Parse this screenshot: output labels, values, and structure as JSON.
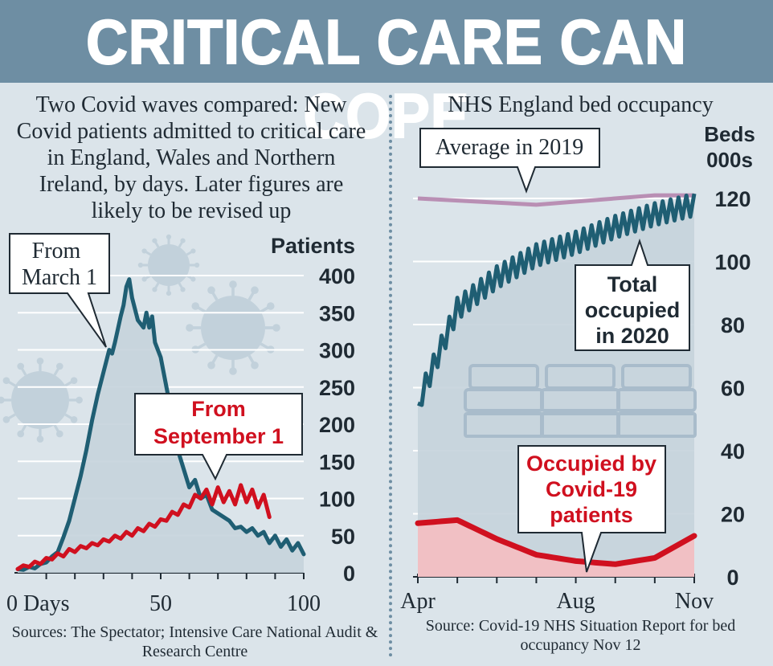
{
  "headline": "CRITICAL CARE CAN COPE",
  "left_panel": {
    "subtitle": "Two Covid waves compared: New Covid patients admitted to critical care in England, Wales and Northern Ireland, by days. Later figures are likely to be revised up",
    "source": "Sources: The Spectator; Intensive Care National Audit & Research Centre"
  },
  "right_panel": {
    "subtitle": "NHS England bed occupancy",
    "source": "Source: Covid-19 NHS Situation Report for bed occupancy Nov 12"
  },
  "colors": {
    "banner": "#6e8ea3",
    "background": "#dbe4ea",
    "teal_line": "#1f5e73",
    "red_line": "#d0101f",
    "lilac_line": "#b98fb4",
    "area_fill": "#c5d3dc",
    "pink_fill": "#f1c0c4"
  },
  "icons": [
    "virus-icon",
    "virus-icon",
    "virus-icon",
    "bed-icon",
    "bed-icon",
    "bed-icon"
  ],
  "chart_data": [
    {
      "type": "line",
      "xlabel": "Days",
      "ylabel": "Patients",
      "xlim": [
        0,
        100
      ],
      "ylim": [
        0,
        400
      ],
      "x_ticks": [
        0,
        50,
        100
      ],
      "x_tick_labels": [
        "0 Days",
        "50",
        "100"
      ],
      "y_ticks": [
        0,
        50,
        100,
        150,
        200,
        250,
        300,
        350,
        400
      ],
      "grid": true,
      "series": [
        {
          "name": "From March 1",
          "label_lines": [
            "From",
            "March 1"
          ],
          "color": "#1f5e73",
          "x": [
            0,
            2,
            4,
            6,
            8,
            10,
            12,
            14,
            16,
            18,
            20,
            22,
            24,
            26,
            28,
            30,
            31,
            32,
            33,
            34,
            36,
            37,
            38,
            39,
            40,
            42,
            44,
            45,
            46,
            47,
            48,
            50,
            52,
            54,
            56,
            58,
            60,
            62,
            64,
            66,
            68,
            70,
            72,
            74,
            76,
            78,
            80,
            82,
            84,
            86,
            88,
            90,
            92,
            94,
            96,
            98,
            100
          ],
          "values": [
            5,
            4,
            8,
            6,
            12,
            14,
            22,
            28,
            48,
            70,
            100,
            130,
            165,
            205,
            240,
            270,
            285,
            300,
            295,
            310,
            345,
            360,
            385,
            395,
            370,
            340,
            330,
            350,
            330,
            345,
            310,
            290,
            250,
            210,
            165,
            140,
            115,
            125,
            100,
            105,
            85,
            80,
            75,
            70,
            60,
            62,
            55,
            60,
            50,
            55,
            40,
            50,
            35,
            45,
            30,
            40,
            25
          ]
        },
        {
          "name": "From September 1",
          "label_lines": [
            "From",
            "September 1"
          ],
          "color": "#d0101f",
          "x": [
            0,
            2,
            4,
            6,
            8,
            10,
            12,
            14,
            16,
            18,
            20,
            22,
            24,
            26,
            28,
            30,
            32,
            34,
            36,
            38,
            40,
            42,
            44,
            46,
            48,
            50,
            52,
            54,
            56,
            58,
            60,
            62,
            64,
            66,
            68,
            70,
            72,
            74,
            76,
            78,
            80,
            82,
            84,
            86,
            88
          ],
          "values": [
            5,
            10,
            8,
            15,
            12,
            20,
            18,
            26,
            22,
            32,
            28,
            36,
            33,
            40,
            37,
            45,
            42,
            50,
            46,
            55,
            50,
            60,
            56,
            66,
            62,
            72,
            70,
            82,
            78,
            92,
            88,
            105,
            100,
            112,
            92,
            115,
            95,
            110,
            92,
            118,
            95,
            112,
            88,
            105,
            75
          ]
        }
      ]
    },
    {
      "type": "line",
      "ylabel": "Beds 000s",
      "ylabel_lines": [
        "Beds",
        "000s"
      ],
      "xlim": [
        "Apr",
        "Nov"
      ],
      "ylim": [
        0,
        120
      ],
      "x_tick_labels": [
        "Apr",
        "Aug",
        "Nov"
      ],
      "y_ticks": [
        0,
        20,
        40,
        60,
        80,
        100,
        120
      ],
      "grid": true,
      "series": [
        {
          "name": "Average in 2019",
          "color": "#b98fb4",
          "x": [
            "Apr",
            "Jul",
            "Oct",
            "Nov"
          ],
          "values": [
            120,
            118,
            121,
            121
          ]
        },
        {
          "name": "Total occupied in 2020",
          "label_lines": [
            "Total",
            "occupied",
            "in 2020"
          ],
          "color": "#1f5e73",
          "x": [
            "Apr",
            "May",
            "Jun",
            "Jul",
            "Aug",
            "Sep",
            "Oct",
            "Nov"
          ],
          "values": [
            55,
            85,
            95,
            102,
            106,
            111,
            115,
            118
          ]
        },
        {
          "name": "Occupied by Covid-19 patients",
          "label_lines": [
            "Occupied by",
            "Covid-19",
            "patients"
          ],
          "color": "#d0101f",
          "x": [
            "Apr",
            "May",
            "Jun",
            "Jul",
            "Aug",
            "Sep",
            "Oct",
            "Nov"
          ],
          "values": [
            17,
            18,
            12,
            7,
            5,
            4,
            6,
            13
          ]
        }
      ]
    }
  ]
}
